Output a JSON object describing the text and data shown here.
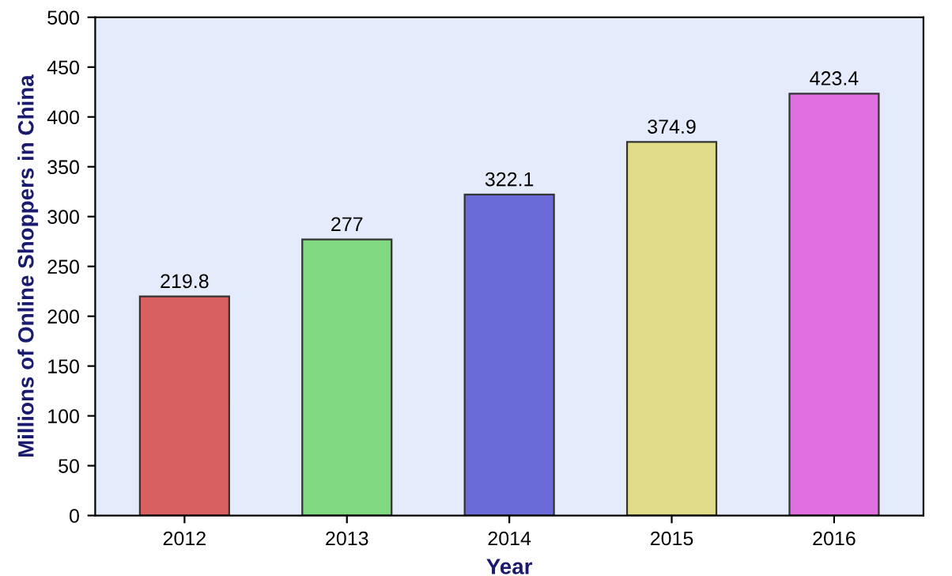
{
  "chart_data": {
    "type": "bar",
    "xlabel": "Year",
    "ylabel": "Millions of Online Shoppers in China",
    "categories": [
      "2012",
      "2013",
      "2014",
      "2015",
      "2016"
    ],
    "values": [
      219.8,
      277,
      322.1,
      374.9,
      423.4
    ],
    "colors": [
      "#d96060",
      "#80d880",
      "#6a6ad8",
      "#e0dc88",
      "#e070e0"
    ],
    "ylim": [
      0,
      500
    ],
    "yticks": [
      0,
      50,
      100,
      150,
      200,
      250,
      300,
      350,
      400,
      450,
      500
    ],
    "data_labels": true,
    "grid": false
  }
}
